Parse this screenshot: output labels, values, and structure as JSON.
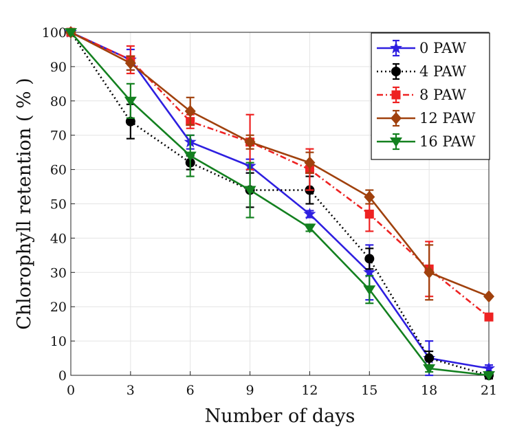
{
  "chart_data": {
    "type": "line",
    "title": "",
    "xlabel": "Number of days",
    "ylabel": "Chlorophyll retention ( % )",
    "x": [
      0,
      3,
      6,
      9,
      12,
      15,
      18,
      21
    ],
    "xlim": [
      0,
      21
    ],
    "ylim": [
      0,
      100
    ],
    "xticks": [
      "0",
      "3",
      "6",
      "9",
      "12",
      "15",
      "18",
      "21"
    ],
    "yticks": [
      "0",
      "10",
      "20",
      "30",
      "40",
      "50",
      "60",
      "70",
      "80",
      "90",
      "100"
    ],
    "grid": true,
    "legend_position": "top-right",
    "series": [
      {
        "name": "0 PAW",
        "values": [
          100,
          92,
          68,
          61,
          47,
          30,
          5,
          2
        ],
        "errors": [
          0,
          3,
          2,
          2,
          1,
          8,
          5,
          1
        ],
        "color": "#2e1fe0",
        "marker": "star",
        "dash": "solid"
      },
      {
        "name": "4 PAW",
        "values": [
          100,
          74,
          62,
          54,
          54,
          34,
          5,
          0
        ],
        "errors": [
          0,
          5,
          2,
          5,
          4,
          3,
          2,
          1
        ],
        "color": "#000000",
        "marker": "circle",
        "dash": "dotted"
      },
      {
        "name": "8 PAW",
        "values": [
          100,
          92,
          74,
          68,
          60,
          47,
          31,
          17
        ],
        "errors": [
          0,
          4,
          2,
          8,
          6,
          5,
          8,
          0
        ],
        "color": "#ee2222",
        "marker": "square",
        "dash": "dashdot"
      },
      {
        "name": "12 PAW",
        "values": [
          100,
          91,
          77,
          68,
          62,
          52,
          30,
          23
        ],
        "errors": [
          0,
          2,
          4,
          2,
          3,
          2,
          8,
          0
        ],
        "color": "#a0410d",
        "marker": "diamond",
        "dash": "solid"
      },
      {
        "name": "16 PAW",
        "values": [
          100,
          80,
          64,
          54,
          43,
          25,
          2,
          0
        ],
        "errors": [
          0,
          5,
          6,
          8,
          1,
          4,
          1,
          0
        ],
        "color": "#13801f",
        "marker": "triangle-down",
        "dash": "solid"
      }
    ]
  }
}
